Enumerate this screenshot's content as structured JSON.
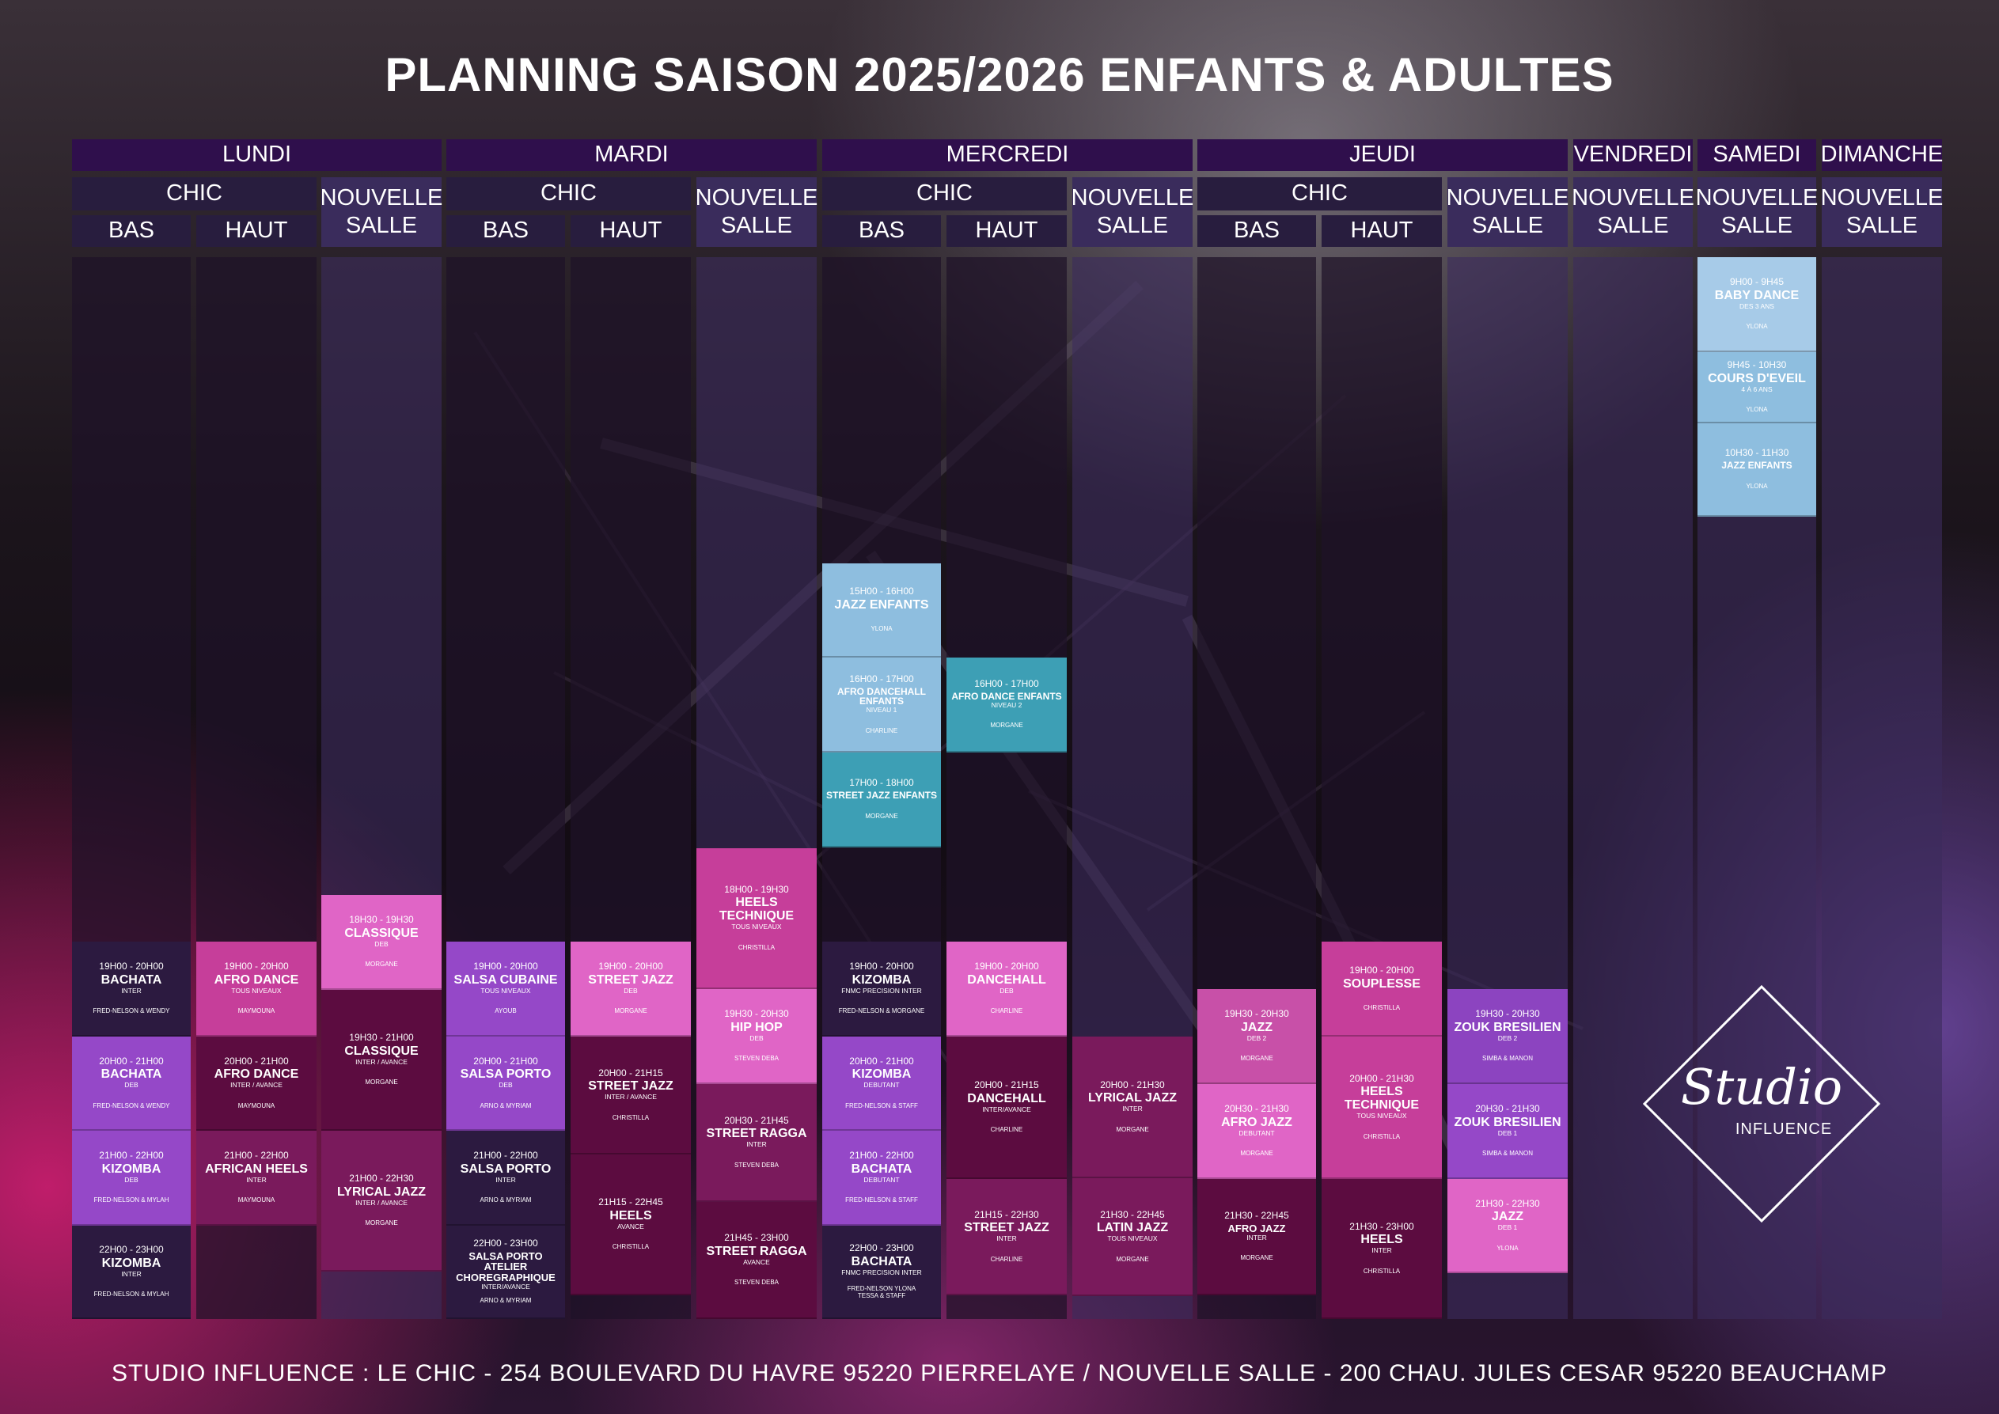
{
  "title": "PLANNING SAISON 2025/2026 ENFANTS & ADULTES",
  "headers": {
    "days": {
      "lundi": "LUNDI",
      "mardi": "MARDI",
      "mercredi": "MERCREDI",
      "jeudi": "JEUDI",
      "vendredi": "VENDREDI",
      "samedi": "SAMEDI",
      "dimanche": "DIMANCHE"
    },
    "chic": "CHIC",
    "bas": "BAS",
    "haut": "HAUT",
    "nouvelle": "NOUVELLE",
    "salle": "SALLE"
  },
  "courses": {
    "lun_bas": [
      {
        "time": "19H00 - 20H00",
        "name": "BACHATA",
        "level": "INTER",
        "teacher": "FRED-NELSON & WENDY"
      },
      {
        "time": "20H00 - 21H00",
        "name": "BACHATA",
        "level": "DEB",
        "teacher": "FRED-NELSON & WENDY"
      },
      {
        "time": "21H00 - 22H00",
        "name": "KIZOMBA",
        "level": "DEB",
        "teacher": "FRED-NELSON & MYLAH"
      },
      {
        "time": "22H00 - 23H00",
        "name": "KIZOMBA",
        "level": "INTER",
        "teacher": "FRED-NELSON & MYLAH"
      }
    ],
    "lun_haut": [
      {
        "time": "19H00 - 20H00",
        "name": "AFRO DANCE",
        "level": "TOUS NIVEAUX",
        "teacher": "MAYMOUNA"
      },
      {
        "time": "20H00 - 21H00",
        "name": "AFRO DANCE",
        "level": "INTER / AVANCE",
        "teacher": "MAYMOUNA"
      },
      {
        "time": "21H00 - 22H00",
        "name": "AFRICAN HEELS",
        "level": "INTER",
        "teacher": "MAYMOUNA"
      }
    ],
    "lun_ns": [
      {
        "time": "18H30 - 19H30",
        "name": "CLASSIQUE",
        "level": "DEB",
        "teacher": "MORGANE"
      },
      {
        "time": "19H30 - 21H00",
        "name": "CLASSIQUE",
        "level": "INTER / AVANCE",
        "teacher": "MORGANE"
      },
      {
        "time": "21H00 - 22H30",
        "name": "LYRICAL JAZZ",
        "level": "INTER / AVANCE",
        "teacher": "MORGANE"
      }
    ],
    "mar_bas": [
      {
        "time": "19H00 - 20H00",
        "name": "SALSA CUBAINE",
        "level": "TOUS NIVEAUX",
        "teacher": "AYOUB"
      },
      {
        "time": "20H00 - 21H00",
        "name": "SALSA PORTO",
        "level": "DEB",
        "teacher": "ARNO & MYRIAM"
      },
      {
        "time": "21H00 - 22H00",
        "name": "SALSA PORTO",
        "level": "INTER",
        "teacher": "ARNO & MYRIAM"
      },
      {
        "time": "22H00 - 23H00",
        "name": "SALSA PORTO ATELIER CHOREGRAPHIQUE",
        "level": "INTER/AVANCE",
        "teacher": "ARNO & MYRIAM"
      }
    ],
    "mar_haut": [
      {
        "time": "19H00 - 20H00",
        "name": "STREET JAZZ",
        "level": "DEB",
        "teacher": "MORGANE"
      },
      {
        "time": "20H00 - 21H15",
        "name": "STREET JAZZ",
        "level": "INTER / AVANCE",
        "teacher": "CHRISTILLA"
      },
      {
        "time": "21H15 - 22H45",
        "name": "HEELS",
        "level": "AVANCE",
        "teacher": "CHRISTILLA"
      }
    ],
    "mar_ns": [
      {
        "time": "18H00 - 19H30",
        "name": "HEELS TECHNIQUE",
        "level": "TOUS NIVEAUX",
        "teacher": "CHRISTILLA"
      },
      {
        "time": "19H30 - 20H30",
        "name": "HIP HOP",
        "level": "DEB",
        "teacher": "STEVEN DEBA"
      },
      {
        "time": "20H30 - 21H45",
        "name": "STREET RAGGA",
        "level": "INTER",
        "teacher": "STEVEN DEBA"
      },
      {
        "time": "21H45 - 23H00",
        "name": "STREET RAGGA",
        "level": "AVANCE",
        "teacher": "STEVEN DEBA"
      }
    ],
    "mer_bas": [
      {
        "time": "15H00 - 16H00",
        "name": "JAZZ ENFANTS",
        "level": "",
        "teacher": "YLONA"
      },
      {
        "time": "16H00 - 17H00",
        "name": "AFRO DANCEHALL ENFANTS",
        "level": "NIVEAU 1",
        "teacher": "CHARLINE"
      },
      {
        "time": "17H00 - 18H00",
        "name": "STREET JAZZ ENFANTS",
        "level": "",
        "teacher": "MORGANE"
      },
      {
        "time": "19H00 - 20H00",
        "name": "KIZOMBA",
        "level": "FNMC PRECISION INTER",
        "teacher": "FRED-NELSON & MORGANE"
      },
      {
        "time": "20H00 - 21H00",
        "name": "KIZOMBA",
        "level": "DEBUTANT",
        "teacher": "FRED-NELSON & STAFF"
      },
      {
        "time": "21H00 - 22H00",
        "name": "BACHATA",
        "level": "DEBUTANT",
        "teacher": "FRED-NELSON & STAFF"
      },
      {
        "time": "22H00 - 23H00",
        "name": "BACHATA",
        "level": "FNMC PRECISION INTER",
        "teacher": "FRED-NELSON YLONA TESSA & STAFF"
      }
    ],
    "mer_haut": [
      {
        "time": "16H00 - 17H00",
        "name": "AFRO DANCE ENFANTS",
        "level": "NIVEAU 2",
        "teacher": "MORGANE"
      },
      {
        "time": "19H00 - 20H00",
        "name": "DANCEHALL",
        "level": "DEB",
        "teacher": "CHARLINE"
      },
      {
        "time": "20H00 - 21H15",
        "name": "DANCEHALL",
        "level": "INTER/AVANCE",
        "teacher": "CHARLINE"
      },
      {
        "time": "21H15 - 22H30",
        "name": "STREET JAZZ",
        "level": "INTER",
        "teacher": "CHARLINE"
      }
    ],
    "mer_ns": [
      {
        "time": "20H00 - 21H30",
        "name": "LYRICAL JAZZ",
        "level": "INTER",
        "teacher": "MORGANE"
      },
      {
        "time": "21H30 - 22H45",
        "name": "LATIN JAZZ",
        "level": "TOUS NIVEAUX",
        "teacher": "MORGANE"
      }
    ],
    "jeu_bas": [
      {
        "time": "19H30 - 20H30",
        "name": "JAZZ",
        "level": "DEB 2",
        "teacher": "MORGANE"
      },
      {
        "time": "20H30 - 21H30",
        "name": "AFRO JAZZ",
        "level": "DEBUTANT",
        "teacher": "MORGANE"
      },
      {
        "time": "21H30 - 22H45",
        "name": "AFRO JAZZ",
        "level": "INTER",
        "teacher": "MORGANE"
      }
    ],
    "jeu_haut": [
      {
        "time": "19H00 - 20H00",
        "name": "SOUPLESSE",
        "level": "",
        "teacher": "CHRISTILLA"
      },
      {
        "time": "20H00 - 21H30",
        "name": "HEELS TECHNIQUE",
        "level": "TOUS NIVEAUX",
        "teacher": "CHRISTILLA"
      },
      {
        "time": "21H30 - 23H00",
        "name": "HEELS",
        "level": "INTER",
        "teacher": "CHRISTILLA"
      }
    ],
    "jeu_ns": [
      {
        "time": "19H30 - 20H30",
        "name": "ZOUK BRESILIEN",
        "level": "DEB 2",
        "teacher": "SIMBA & MANON"
      },
      {
        "time": "20H30 - 21H30",
        "name": "ZOUK BRESILIEN",
        "level": "DEB 1",
        "teacher": "SIMBA & MANON"
      },
      {
        "time": "21H30 - 22H30",
        "name": "JAZZ",
        "level": "DEB 1",
        "teacher": "YLONA"
      }
    ],
    "sam_ns": [
      {
        "time": "9H00 - 9H45",
        "name": "BABY DANCE",
        "level": "DES 3 ANS",
        "teacher": "YLONA"
      },
      {
        "time": "9H45 - 10H30",
        "name": "COURS D'EVEIL",
        "level": "4 À 6 ANS",
        "teacher": "YLONA"
      },
      {
        "time": "10H30 - 11H30",
        "name": "JAZZ ENFANTS",
        "level": "",
        "teacher": "YLONA"
      }
    ]
  },
  "logo": {
    "script": "Studio",
    "text": "INFLUENCE"
  },
  "footer": "STUDIO INFLUENCE : LE CHIC - 254 BOULEVARD DU HAVRE 95220 PIERRELAYE / NOUVELLE SALLE - 200 CHAU. JULES CESAR 95220 BEAUCHAMP"
}
